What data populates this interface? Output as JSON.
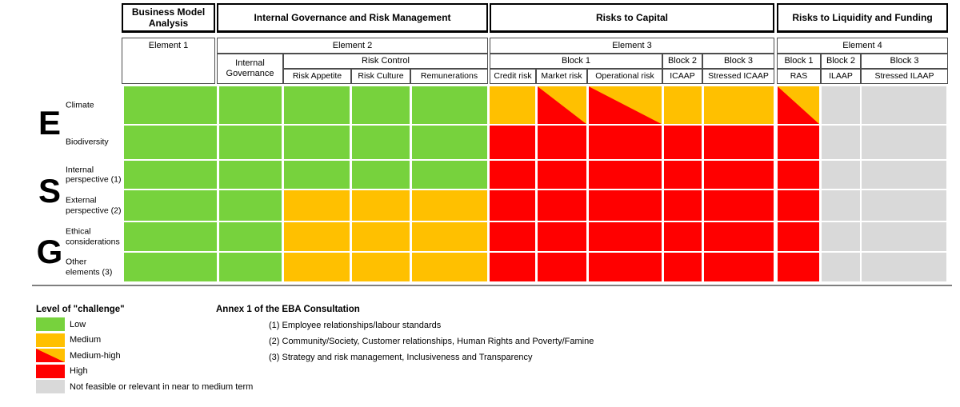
{
  "title_groups": {
    "bma": "Business Model Analysis",
    "igrm": "Internal Governance and Risk Management",
    "rtc": "Risks to Capital",
    "rtlf": "Risks to Liquidity and Funding"
  },
  "header": {
    "element1": "Element 1",
    "element2": "Element  2",
    "element3": "Element 3",
    "element4": "Element 4",
    "internal_governance": "Internal Governance",
    "risk_control": "Risk Control",
    "risk_appetite": "Risk Appetite",
    "risk_culture": "Risk Culture",
    "remunerations": "Remunerations",
    "block1_capital": "Block 1",
    "block2_capital": "Block 2",
    "block3_capital": "Block 3",
    "credit_risk": "Credit risk",
    "market_risk": "Market risk",
    "operational_risk": "Operational risk",
    "icaap": "ICAAP",
    "stressed_icaap": "Stressed ICAAP",
    "block1_liquidity": "Block 1",
    "block2_liquidity": "Block 2",
    "block3_liquidity": "Block 3",
    "ras": "RAS",
    "ilaap": "ILAAP",
    "stressed_ilaap": "Stressed ILAAP"
  },
  "chart_data": {
    "type": "heatmap",
    "columns": [
      "Element 1 (Business Model Analysis)",
      "Internal Governance",
      "Risk Appetite",
      "Risk Culture",
      "Remunerations",
      "Credit risk",
      "Market risk",
      "Operational risk",
      "ICAAP",
      "Stressed ICAAP",
      "RAS",
      "ILAAP",
      "Stressed ILAAP"
    ],
    "column_groups": [
      "Business Model Analysis",
      "Internal Governance and Risk Management",
      "Risks to Capital",
      "Risks to Liquidity and Funding"
    ],
    "rows": [
      {
        "group": "E",
        "label": "Climate",
        "levels": [
          "low",
          "low",
          "low",
          "low",
          "low",
          "medium",
          "medium-high",
          "medium-high",
          "medium",
          "medium",
          "medium-high",
          "na",
          "na"
        ]
      },
      {
        "group": "E",
        "label": "Biodiversity",
        "levels": [
          "low",
          "low",
          "low",
          "low",
          "low",
          "high",
          "high",
          "high",
          "high",
          "high",
          "high",
          "na",
          "na"
        ]
      },
      {
        "group": "S",
        "label": "Internal perspective (1)",
        "levels": [
          "low",
          "low",
          "low",
          "low",
          "low",
          "high",
          "high",
          "high",
          "high",
          "high",
          "high",
          "na",
          "na"
        ]
      },
      {
        "group": "S",
        "label": "External perspective (2)",
        "levels": [
          "low",
          "low",
          "medium",
          "medium",
          "medium",
          "high",
          "high",
          "high",
          "high",
          "high",
          "high",
          "na",
          "na"
        ]
      },
      {
        "group": "G",
        "label": "Ethical considerations",
        "levels": [
          "low",
          "low",
          "medium",
          "medium",
          "medium",
          "high",
          "high",
          "high",
          "high",
          "high",
          "high",
          "na",
          "na"
        ]
      },
      {
        "group": "G",
        "label": "Other elements (3)",
        "levels": [
          "low",
          "low",
          "medium",
          "medium",
          "medium",
          "high",
          "high",
          "high",
          "high",
          "high",
          "high",
          "na",
          "na"
        ]
      }
    ],
    "esg_letters": [
      "E",
      "S",
      "G"
    ],
    "level_colors": {
      "low": "#77D23D",
      "medium": "#FFC000",
      "medium-high": "red/yellow diagonal",
      "high": "#FF0000",
      "na": "#D9D9D9"
    }
  },
  "legend": {
    "title": "Level of \"challenge\"",
    "items": [
      {
        "level": "low",
        "label": "Low"
      },
      {
        "level": "medium",
        "label": "Medium"
      },
      {
        "level": "medium-high",
        "label": "Medium-high"
      },
      {
        "level": "high",
        "label": "High"
      },
      {
        "level": "na",
        "label": "Not feasible or relevant in near to medium term"
      }
    ]
  },
  "annex": {
    "title": "Annex 1 of the EBA Consultation",
    "items": [
      "(1) Employee relationships/labour standards",
      "(2) Community/Society, Customer relationships, Human Rights and Poverty/Famine",
      "(3) Strategy and risk management, Inclusiveness and Transparency"
    ]
  },
  "colors": {
    "band_a_border": "#000000",
    "band_b_border": "#4d4d4d",
    "separator": "#7f7f7f",
    "background": "#ffffff"
  }
}
